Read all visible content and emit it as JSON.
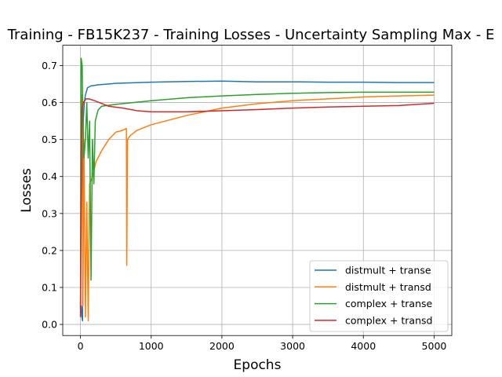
{
  "chart_data": {
    "type": "line",
    "title": "Training - FB15K237 - Training Losses - Uncertainty Sampling Max - E",
    "xlabel": "Epochs",
    "ylabel": "Losses",
    "xlim": [
      -250,
      5250
    ],
    "ylim": [
      -0.03,
      0.755
    ],
    "xticks": [
      0,
      1000,
      2000,
      3000,
      4000,
      5000
    ],
    "xtick_labels": [
      "0",
      "1000",
      "2000",
      "3000",
      "4000",
      "5000"
    ],
    "yticks": [
      0.0,
      0.1,
      0.2,
      0.3,
      0.4,
      0.5,
      0.6,
      0.7
    ],
    "ytick_labels": [
      "0.0",
      "0.1",
      "0.2",
      "0.3",
      "0.4",
      "0.5",
      "0.6",
      "0.7"
    ],
    "grid": true,
    "legend_position": "lower right",
    "series": [
      {
        "name": "distmult + transe",
        "color": "#1f77b4",
        "points": [
          [
            0,
            0.03
          ],
          [
            10,
            0.05
          ],
          [
            20,
            0.02
          ],
          [
            30,
            0.01
          ],
          [
            40,
            0.55
          ],
          [
            55,
            0.6
          ],
          [
            70,
            0.62
          ],
          [
            100,
            0.64
          ],
          [
            150,
            0.645
          ],
          [
            250,
            0.648
          ],
          [
            500,
            0.652
          ],
          [
            1000,
            0.655
          ],
          [
            1500,
            0.657
          ],
          [
            2000,
            0.658
          ],
          [
            2500,
            0.656
          ],
          [
            3000,
            0.656
          ],
          [
            3500,
            0.655
          ],
          [
            4000,
            0.655
          ],
          [
            4500,
            0.654
          ],
          [
            5000,
            0.654
          ]
        ]
      },
      {
        "name": "distmult + transd",
        "color": "#ff7f0e",
        "points": [
          [
            0,
            0.6
          ],
          [
            20,
            0.62
          ],
          [
            35,
            0.05
          ],
          [
            50,
            0.5
          ],
          [
            70,
            0.02
          ],
          [
            90,
            0.33
          ],
          [
            110,
            0.01
          ],
          [
            130,
            0.38
          ],
          [
            170,
            0.4
          ],
          [
            220,
            0.44
          ],
          [
            300,
            0.47
          ],
          [
            400,
            0.5
          ],
          [
            500,
            0.52
          ],
          [
            600,
            0.525
          ],
          [
            650,
            0.53
          ],
          [
            655,
            0.16
          ],
          [
            665,
            0.5
          ],
          [
            700,
            0.51
          ],
          [
            800,
            0.525
          ],
          [
            1000,
            0.54
          ],
          [
            1500,
            0.565
          ],
          [
            2000,
            0.585
          ],
          [
            2500,
            0.597
          ],
          [
            3000,
            0.605
          ],
          [
            3500,
            0.61
          ],
          [
            4000,
            0.615
          ],
          [
            4500,
            0.618
          ],
          [
            5000,
            0.62
          ]
        ]
      },
      {
        "name": "complex + transe",
        "color": "#2ca02c",
        "points": [
          [
            0,
            0.04
          ],
          [
            10,
            0.72
          ],
          [
            25,
            0.7
          ],
          [
            35,
            0.55
          ],
          [
            50,
            0.45
          ],
          [
            70,
            0.5
          ],
          [
            90,
            0.6
          ],
          [
            110,
            0.45
          ],
          [
            130,
            0.55
          ],
          [
            150,
            0.12
          ],
          [
            170,
            0.5
          ],
          [
            190,
            0.38
          ],
          [
            210,
            0.55
          ],
          [
            250,
            0.58
          ],
          [
            300,
            0.59
          ],
          [
            500,
            0.595
          ],
          [
            1000,
            0.605
          ],
          [
            1500,
            0.613
          ],
          [
            2000,
            0.618
          ],
          [
            2500,
            0.622
          ],
          [
            3000,
            0.625
          ],
          [
            3500,
            0.627
          ],
          [
            4000,
            0.628
          ],
          [
            4500,
            0.628
          ],
          [
            5000,
            0.628
          ]
        ]
      },
      {
        "name": "complex + transd",
        "color": "#d62728",
        "points": [
          [
            0,
            0.02
          ],
          [
            20,
            0.58
          ],
          [
            40,
            0.6
          ],
          [
            80,
            0.61
          ],
          [
            120,
            0.61
          ],
          [
            200,
            0.605
          ],
          [
            400,
            0.59
          ],
          [
            600,
            0.585
          ],
          [
            800,
            0.578
          ],
          [
            1000,
            0.575
          ],
          [
            1500,
            0.575
          ],
          [
            2000,
            0.578
          ],
          [
            2500,
            0.581
          ],
          [
            3000,
            0.585
          ],
          [
            3500,
            0.588
          ],
          [
            4000,
            0.59
          ],
          [
            4500,
            0.592
          ],
          [
            5000,
            0.598
          ]
        ]
      }
    ]
  }
}
